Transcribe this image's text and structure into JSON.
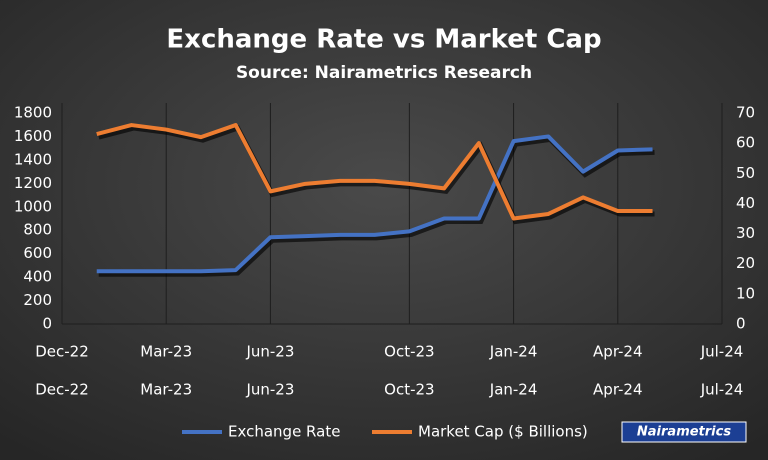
{
  "chart_data": {
    "type": "line",
    "title": "Exchange Rate vs Market Cap",
    "subtitle": "Source: Nairametrics Research",
    "x": [
      "Jan-23",
      "Feb-23",
      "Mar-23",
      "Apr-23",
      "May-23",
      "Jun-23",
      "Jul-23",
      "Aug-23",
      "Sep-23",
      "Oct-23",
      "Nov-23",
      "Dec-23",
      "Jan-24",
      "Feb-24",
      "Mar-24",
      "Apr-24",
      "May-24"
    ],
    "series": [
      {
        "name": "Exchange Rate",
        "color": "#4472c4",
        "axis": "y",
        "values": [
          450,
          450,
          450,
          450,
          460,
          740,
          750,
          760,
          760,
          790,
          900,
          900,
          1560,
          1600,
          1300,
          1480,
          1490
        ]
      },
      {
        "name": "Market Cap ($ Billions)",
        "color": "#ed7d31",
        "axis": "y2",
        "values": [
          63,
          66,
          64.5,
          62,
          66,
          44,
          46.5,
          47.5,
          47.5,
          46.5,
          45,
          60,
          35,
          36.5,
          42,
          37.5,
          37.5
        ]
      }
    ],
    "xlim": [
      "Dec-22",
      "Jul-24"
    ],
    "xticks": [
      "Dec-22",
      "Mar-23",
      "Jun-23",
      "Oct-23",
      "Jan-24",
      "Apr-24",
      "Jul-24"
    ],
    "x2ticks": [
      "Dec-22",
      "Mar-23",
      "Jun-23",
      "Oct-23",
      "Jan-24",
      "Apr-24",
      "Jul-24"
    ],
    "ylim": [
      0,
      1800
    ],
    "yticks": [
      0,
      200,
      400,
      600,
      800,
      1000,
      1200,
      1400,
      1600,
      1800
    ],
    "y2lim": [
      0,
      70
    ],
    "y2ticks": [
      0,
      10,
      20,
      30,
      40,
      50,
      60,
      70
    ],
    "grid": true,
    "legend": "bottom",
    "logo": "Nairametrics"
  }
}
